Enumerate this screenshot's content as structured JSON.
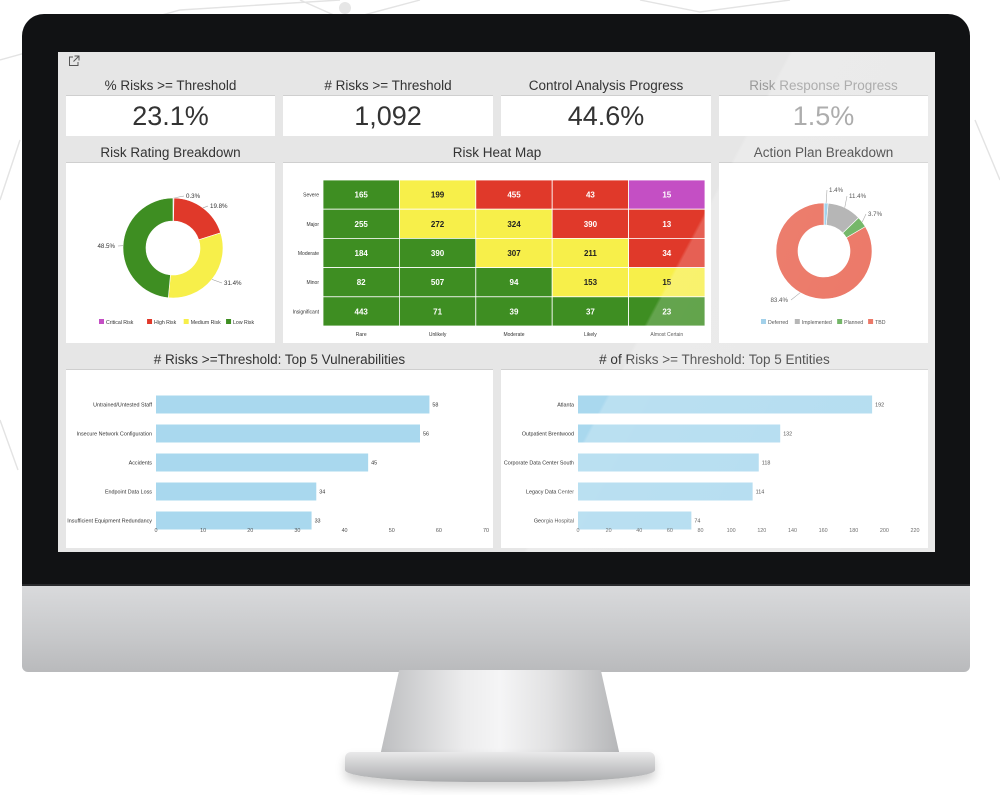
{
  "kpis": [
    {
      "label": "% Risks >= Threshold",
      "value": "23.1%"
    },
    {
      "label": "# Risks >= Threshold",
      "value": "1,092"
    },
    {
      "label": "Control Analysis Progress",
      "value": "44.6%"
    },
    {
      "label": "Risk Response Progress",
      "value": "1.5%"
    }
  ],
  "panels": {
    "risk_rating": "Risk Rating Breakdown",
    "heat_map": "Risk Heat Map",
    "action_plan": "Action Plan Breakdown",
    "vulnerabilities": "# Risks >=Threshold: Top 5 Vulnerabilities",
    "entities": "# of Risks >= Threshold: Top 5 Entities"
  },
  "colors": {
    "critical": "#c44fc4",
    "high": "#e0392a",
    "medium": "#f7ef4a",
    "low": "#3e8e22",
    "deferred": "#8fc7e6",
    "implemented": "#a7a7a7",
    "planned": "#59a84a",
    "tbd": "#e8604c",
    "bar": "#a9d8ee"
  },
  "chart_data": [
    {
      "type": "pie",
      "title": "Risk Rating Breakdown",
      "labels": [
        "Critical Risk",
        "High Risk",
        "Medium Risk",
        "Low Risk"
      ],
      "values": [
        0.3,
        19.8,
        31.4,
        48.5
      ],
      "value_labels": [
        "0.3%",
        "19.8%",
        "31.4%",
        "48.5%"
      ],
      "legend": "bottom"
    },
    {
      "type": "heatmap",
      "title": "Risk Heat Map",
      "rows": [
        "Severe",
        "Major",
        "Moderate",
        "Minor",
        "Insignificant"
      ],
      "columns": [
        "Rare",
        "Unlikely",
        "Moderate",
        "Likely",
        "Almost Certain"
      ],
      "values": [
        [
          165,
          199,
          455,
          43,
          15
        ],
        [
          255,
          272,
          324,
          390,
          13
        ],
        [
          184,
          390,
          307,
          211,
          34
        ],
        [
          82,
          507,
          94,
          153,
          15
        ],
        [
          443,
          71,
          39,
          37,
          23
        ]
      ],
      "levels": [
        [
          "low",
          "medium",
          "high",
          "high",
          "critical"
        ],
        [
          "low",
          "medium",
          "medium",
          "high",
          "high"
        ],
        [
          "low",
          "low",
          "medium",
          "medium",
          "high"
        ],
        [
          "low",
          "low",
          "low",
          "medium",
          "medium"
        ],
        [
          "low",
          "low",
          "low",
          "low",
          "low"
        ]
      ]
    },
    {
      "type": "pie",
      "title": "Action Plan Breakdown",
      "labels": [
        "Deferred",
        "Implemented",
        "Planned",
        "TBD"
      ],
      "values": [
        1.4,
        11.4,
        3.7,
        83.4
      ],
      "value_labels": [
        "1.4%",
        "11.4%",
        "3.7%",
        "83.4%"
      ],
      "legend": "bottom"
    },
    {
      "type": "bar",
      "orientation": "horizontal",
      "title": "# Risks >=Threshold: Top 5 Vulnerabilities",
      "categories": [
        "Untrained/Untested Staff",
        "Insecure Network Configuration",
        "Accidents",
        "Endpoint Data Loss",
        "Insufficient Equipment Redundancy"
      ],
      "values": [
        58,
        56,
        45,
        34,
        33
      ],
      "xticks": [
        "0",
        "10",
        "20",
        "30",
        "40",
        "50",
        "60",
        "70"
      ],
      "xlim": [
        0,
        70
      ]
    },
    {
      "type": "bar",
      "orientation": "horizontal",
      "title": "# of Risks >= Threshold: Top 5 Entities",
      "categories": [
        "Atlanta",
        "Outpatient Brentwood",
        "Corporate Data Center South",
        "Legacy Data Center",
        "Georgia Hospital"
      ],
      "values": [
        192,
        132,
        118,
        114,
        74
      ],
      "xticks": [
        "0",
        "20",
        "40",
        "60",
        "80",
        "100",
        "120",
        "140",
        "160",
        "180",
        "200",
        "220"
      ],
      "xlim": [
        0,
        220
      ]
    }
  ]
}
